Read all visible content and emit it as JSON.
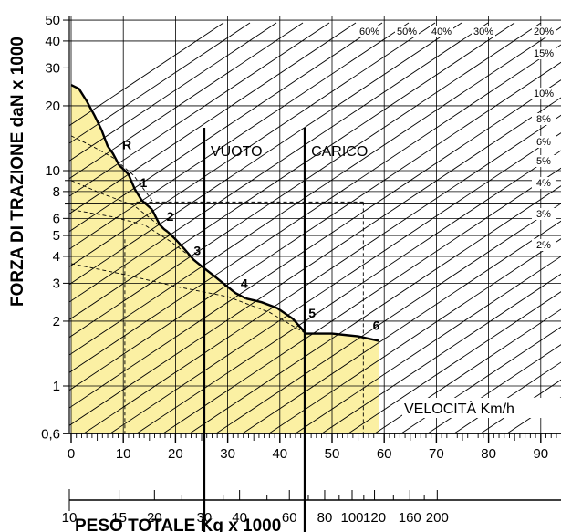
{
  "chart_data": {
    "type": "area",
    "title": "",
    "ylabel": "FORZA DI TRAZIONE daN x 1000",
    "xlabel": "PESO TOTALE Kg x 1000",
    "y_scale": "log",
    "ylim": [
      0.6,
      50
    ],
    "y_ticks": [
      {
        "value": 0.6,
        "label": "0,6"
      },
      {
        "value": 1,
        "label": "1"
      },
      {
        "value": 2,
        "label": "2"
      },
      {
        "value": 3,
        "label": "3"
      },
      {
        "value": 4,
        "label": "4"
      },
      {
        "value": 5,
        "label": "5"
      },
      {
        "value": 6,
        "label": "6"
      },
      {
        "value": 8,
        "label": "8"
      },
      {
        "value": 10,
        "label": "10"
      },
      {
        "value": 20,
        "label": "20"
      },
      {
        "value": 30,
        "label": "30"
      },
      {
        "value": 40,
        "label": "40"
      },
      {
        "value": 50,
        "label": "50"
      }
    ],
    "speed_axis": {
      "label": "VELOCITÀ Km/h",
      "range": [
        0,
        95
      ],
      "tick_labels": [
        "0",
        "10",
        "20",
        "30",
        "40",
        "50",
        "60",
        "70",
        "80",
        "90"
      ]
    },
    "weight_axis": {
      "label": "PESO TOTALE Kg x 1000",
      "scale": "log",
      "tick_labels": [
        "10",
        "15",
        "20",
        "30",
        "40",
        "60",
        "80",
        "100",
        "120",
        "160",
        "200"
      ]
    },
    "gradients": [
      "60%",
      "50%",
      "40%",
      "30%",
      "20%",
      "15%",
      "10%",
      "8%",
      "6%",
      "5%",
      "4%",
      "3%",
      "2%"
    ],
    "weight_markers": [
      {
        "label": "VUOTO",
        "weight": 30
      },
      {
        "label": "CARICO",
        "weight": 68
      }
    ],
    "gears": [
      {
        "name": "R",
        "speed_range": [
          7,
          11
        ],
        "force_range": [
          13,
          9.6
        ]
      },
      {
        "name": "1",
        "speed_range": [
          11,
          15.5
        ],
        "force_range": [
          9.6,
          6.6
        ]
      },
      {
        "name": "2",
        "speed_range": [
          15.5,
          18.5
        ],
        "force_range": [
          6.6,
          5.2
        ]
      },
      {
        "name": "3",
        "speed_range": [
          18.5,
          25
        ],
        "force_range": [
          5.2,
          3.6
        ]
      },
      {
        "name": "4",
        "speed_range": [
          25,
          33.5
        ],
        "force_range": [
          3.6,
          2.55
        ]
      },
      {
        "name": "5",
        "speed_range": [
          33.5,
          45
        ],
        "force_range": [
          2.55,
          1.75
        ]
      },
      {
        "name": "6",
        "speed_range": [
          45,
          59
        ],
        "force_range": [
          1.75,
          1.62
        ]
      }
    ],
    "grid": true
  }
}
